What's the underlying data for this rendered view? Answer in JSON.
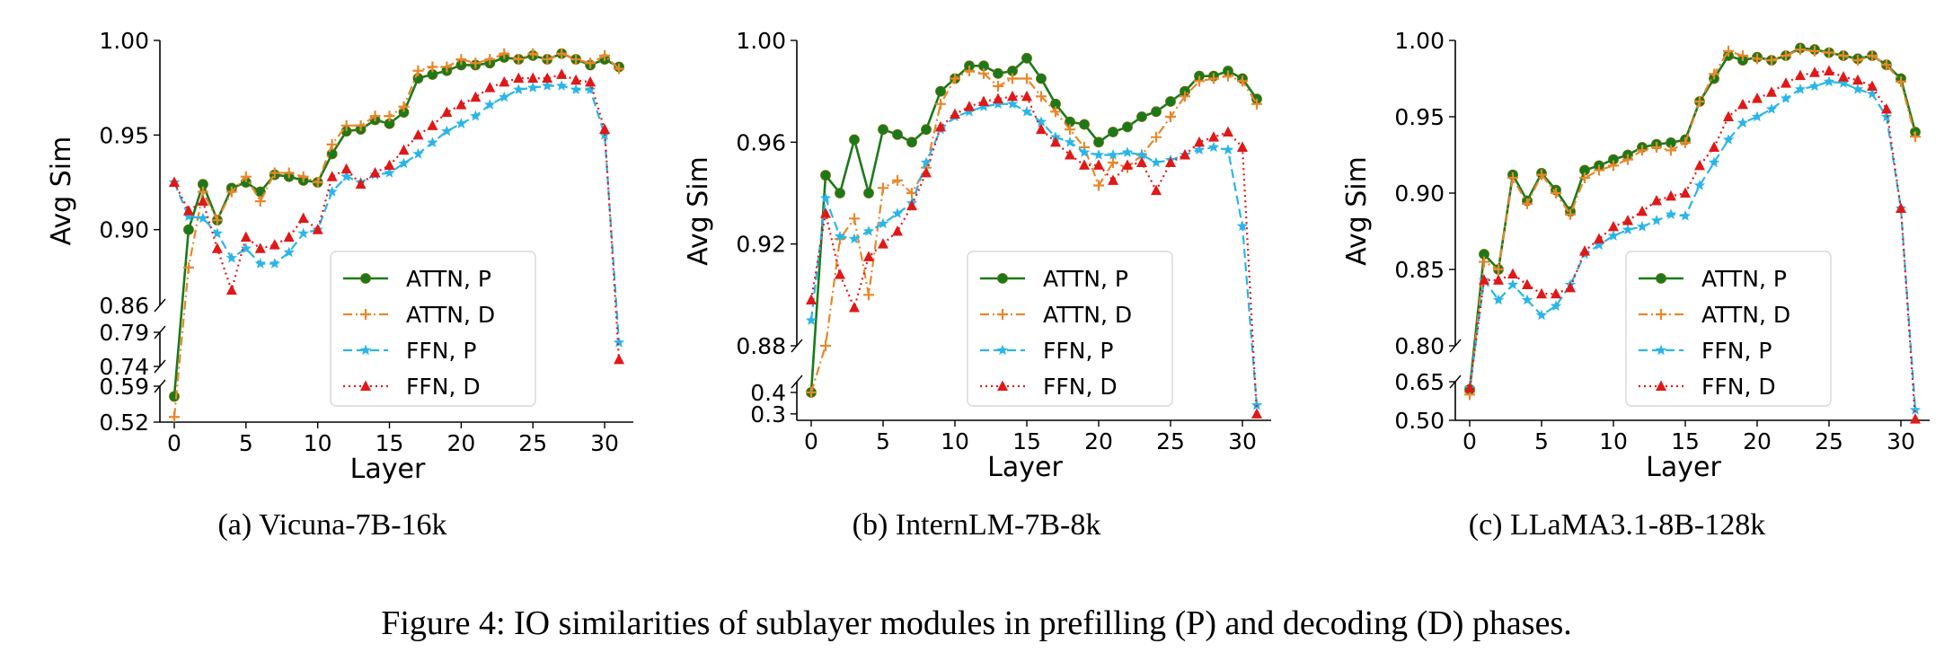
{
  "figure_caption": "Figure 4: IO similarities of sublayer modules in prefilling (P) and decoding (D) phases.",
  "colors": {
    "attn_p": "#1a7a1a",
    "attn_d": "#e8872a",
    "ffn_p": "#2ab5e8",
    "ffn_d": "#e01818"
  },
  "chart_data": [
    {
      "type": "line",
      "caption": "(a)  Vicuna-7B-16k",
      "xlabel": "Layer",
      "ylabel": "Avg Sim",
      "xticks": [
        "0",
        "5",
        "10",
        "15",
        "20",
        "25",
        "30"
      ],
      "xticks_values": [
        0,
        5,
        10,
        15,
        20,
        25,
        30
      ],
      "xlim": [
        -1,
        32
      ],
      "panels": [
        {
          "ylim": [
            0.86,
            1.0
          ],
          "ticks": [
            0.9,
            0.95,
            1.0
          ],
          "tick_labels": [
            "0.90",
            "0.95",
            "1.00"
          ],
          "bottom_label": "0.86"
        },
        {
          "ylim": [
            0.74,
            0.79
          ],
          "ticks": [
            0.74,
            0.79
          ],
          "tick_labels": [
            "0.74",
            "0.79"
          ]
        },
        {
          "ylim": [
            0.52,
            0.59
          ],
          "ticks": [
            0.52,
            0.59
          ],
          "tick_labels": [
            "0.52",
            "0.59"
          ]
        }
      ],
      "legend": [
        "ATTN, P",
        "ATTN, D",
        "FFN, P",
        "FFN, D"
      ],
      "series": [
        {
          "name": "ATTN, P",
          "values": [
            0.57,
            0.9,
            0.924,
            0.905,
            0.922,
            0.925,
            0.92,
            0.929,
            0.928,
            0.926,
            0.925,
            0.94,
            0.952,
            0.953,
            0.958,
            0.956,
            0.962,
            0.98,
            0.982,
            0.984,
            0.987,
            0.987,
            0.988,
            0.991,
            0.99,
            0.992,
            0.99,
            0.993,
            0.99,
            0.987,
            0.99,
            0.986
          ]
        },
        {
          "name": "ATTN, D",
          "values": [
            0.53,
            0.88,
            0.92,
            0.905,
            0.92,
            0.928,
            0.915,
            0.93,
            0.93,
            0.928,
            0.925,
            0.945,
            0.955,
            0.955,
            0.96,
            0.96,
            0.965,
            0.984,
            0.986,
            0.986,
            0.99,
            0.988,
            0.99,
            0.993,
            0.99,
            0.993,
            0.99,
            0.993,
            0.99,
            0.988,
            0.992,
            0.985
          ]
        },
        {
          "name": "FFN, P",
          "values": [
            0.925,
            0.907,
            0.906,
            0.898,
            0.885,
            0.89,
            0.882,
            0.882,
            0.888,
            0.898,
            0.9,
            0.92,
            0.928,
            0.925,
            0.929,
            0.93,
            0.935,
            0.94,
            0.946,
            0.952,
            0.956,
            0.96,
            0.966,
            0.97,
            0.974,
            0.975,
            0.976,
            0.976,
            0.974,
            0.974,
            0.95,
            0.775
          ]
        },
        {
          "name": "FFN, D",
          "values": [
            0.925,
            0.91,
            0.915,
            0.89,
            0.868,
            0.896,
            0.89,
            0.892,
            0.896,
            0.906,
            0.9,
            0.928,
            0.932,
            0.924,
            0.93,
            0.934,
            0.942,
            0.95,
            0.955,
            0.962,
            0.966,
            0.97,
            0.975,
            0.978,
            0.98,
            0.98,
            0.98,
            0.982,
            0.979,
            0.978,
            0.953,
            0.75
          ]
        }
      ]
    },
    {
      "type": "line",
      "caption": "(b)  InternLM-7B-8k",
      "xlabel": "Layer",
      "ylabel": "Avg Sim",
      "xticks": [
        "0",
        "5",
        "10",
        "15",
        "20",
        "25",
        "30"
      ],
      "xticks_values": [
        0,
        5,
        10,
        15,
        20,
        25,
        30
      ],
      "xlim": [
        -1,
        32
      ],
      "panels": [
        {
          "ylim": [
            0.88,
            1.0
          ],
          "ticks": [
            0.88,
            0.92,
            0.96,
            1.0
          ],
          "tick_labels": [
            "0.88",
            "0.92",
            "0.96",
            "1.00"
          ]
        },
        {
          "ylim": [
            0.27,
            0.45
          ],
          "ticks": [
            0.3,
            0.4
          ],
          "tick_labels": [
            "0.3",
            "0.4"
          ]
        }
      ],
      "legend": [
        "ATTN, P",
        "ATTN, D",
        "FFN, P",
        "FFN, D"
      ],
      "series": [
        {
          "name": "ATTN, P",
          "values": [
            0.4,
            0.947,
            0.94,
            0.961,
            0.94,
            0.965,
            0.963,
            0.96,
            0.965,
            0.98,
            0.985,
            0.99,
            0.99,
            0.987,
            0.988,
            0.993,
            0.985,
            0.975,
            0.968,
            0.967,
            0.96,
            0.964,
            0.966,
            0.97,
            0.972,
            0.976,
            0.98,
            0.986,
            0.986,
            0.988,
            0.985,
            0.977
          ]
        },
        {
          "name": "ATTN, D",
          "values": [
            0.4,
            0.88,
            0.922,
            0.93,
            0.9,
            0.942,
            0.945,
            0.94,
            0.95,
            0.975,
            0.985,
            0.988,
            0.987,
            0.982,
            0.985,
            0.985,
            0.978,
            0.972,
            0.965,
            0.958,
            0.943,
            0.952,
            0.95,
            0.955,
            0.962,
            0.97,
            0.978,
            0.984,
            0.985,
            0.986,
            0.984,
            0.975
          ]
        },
        {
          "name": "FFN, P",
          "values": [
            0.89,
            0.938,
            0.923,
            0.922,
            0.925,
            0.928,
            0.932,
            0.936,
            0.952,
            0.965,
            0.97,
            0.972,
            0.974,
            0.975,
            0.975,
            0.972,
            0.968,
            0.962,
            0.96,
            0.956,
            0.955,
            0.955,
            0.956,
            0.955,
            0.952,
            0.953,
            0.955,
            0.957,
            0.958,
            0.957,
            0.927,
            0.34
          ]
        },
        {
          "name": "FFN, D",
          "values": [
            0.898,
            0.932,
            0.908,
            0.895,
            0.915,
            0.92,
            0.925,
            0.935,
            0.948,
            0.966,
            0.971,
            0.974,
            0.976,
            0.977,
            0.978,
            0.978,
            0.965,
            0.96,
            0.955,
            0.951,
            0.951,
            0.945,
            0.951,
            0.952,
            0.941,
            0.952,
            0.955,
            0.96,
            0.962,
            0.964,
            0.958,
            0.3
          ]
        }
      ]
    },
    {
      "type": "line",
      "caption": "(c)  LLaMA3.1-8B-128k",
      "xlabel": "Layer",
      "ylabel": "Avg Sim",
      "xticks": [
        "0",
        "5",
        "10",
        "15",
        "20",
        "25",
        "30"
      ],
      "xticks_values": [
        0,
        5,
        10,
        15,
        20,
        25,
        30
      ],
      "xlim": [
        -1,
        32
      ],
      "panels": [
        {
          "ylim": [
            0.8,
            1.0
          ],
          "ticks": [
            0.8,
            0.85,
            0.9,
            0.95,
            1.0
          ],
          "tick_labels": [
            "0.80",
            "0.85",
            "0.90",
            "0.95",
            "1.00"
          ]
        },
        {
          "ylim": [
            0.5,
            0.65
          ],
          "ticks": [
            0.5,
            0.65
          ],
          "tick_labels": [
            "0.50",
            "0.65"
          ]
        }
      ],
      "legend": [
        "ATTN, P",
        "ATTN, D",
        "FFN, P",
        "FFN, D"
      ],
      "series": [
        {
          "name": "ATTN, P",
          "values": [
            0.62,
            0.86,
            0.85,
            0.912,
            0.895,
            0.913,
            0.902,
            0.888,
            0.915,
            0.918,
            0.922,
            0.925,
            0.93,
            0.932,
            0.933,
            0.935,
            0.96,
            0.975,
            0.99,
            0.987,
            0.989,
            0.987,
            0.99,
            0.995,
            0.994,
            0.992,
            0.99,
            0.988,
            0.99,
            0.984,
            0.975,
            0.94
          ]
        },
        {
          "name": "ATTN, D",
          "values": [
            0.6,
            0.855,
            0.85,
            0.91,
            0.893,
            0.912,
            0.9,
            0.886,
            0.91,
            0.915,
            0.918,
            0.922,
            0.928,
            0.93,
            0.928,
            0.933,
            0.96,
            0.978,
            0.993,
            0.99,
            0.988,
            0.987,
            0.99,
            0.994,
            0.993,
            0.992,
            0.99,
            0.987,
            0.99,
            0.984,
            0.973,
            0.937
          ]
        },
        {
          "name": "FFN, P",
          "values": [
            0.625,
            0.843,
            0.83,
            0.84,
            0.83,
            0.82,
            0.826,
            0.84,
            0.86,
            0.866,
            0.872,
            0.876,
            0.878,
            0.882,
            0.886,
            0.885,
            0.905,
            0.92,
            0.935,
            0.946,
            0.95,
            0.955,
            0.962,
            0.968,
            0.97,
            0.973,
            0.972,
            0.968,
            0.965,
            0.95,
            0.89,
            0.54
          ]
        },
        {
          "name": "FFN, D",
          "values": [
            0.625,
            0.843,
            0.843,
            0.847,
            0.84,
            0.834,
            0.834,
            0.838,
            0.862,
            0.87,
            0.878,
            0.882,
            0.888,
            0.895,
            0.898,
            0.9,
            0.918,
            0.93,
            0.95,
            0.958,
            0.962,
            0.966,
            0.972,
            0.977,
            0.979,
            0.98,
            0.976,
            0.974,
            0.97,
            0.955,
            0.89,
            0.505
          ]
        }
      ]
    }
  ]
}
